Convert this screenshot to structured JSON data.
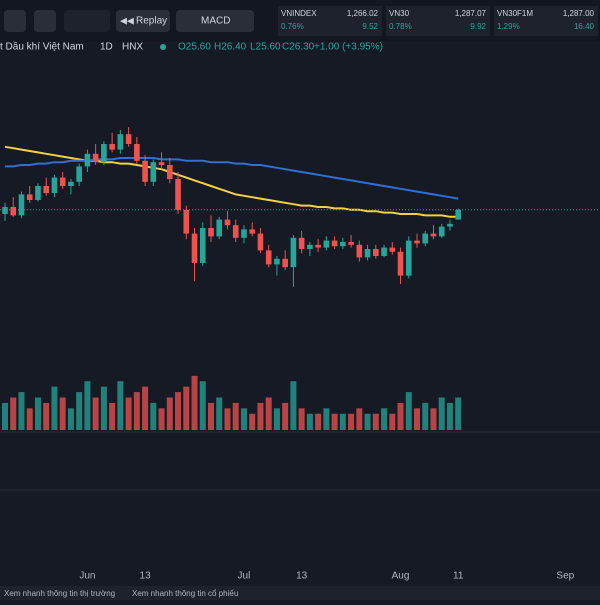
{
  "toolbar": {
    "replay": "Replay",
    "indicator": "MACD"
  },
  "tickers": [
    {
      "name": "VNINDEX",
      "price": "1,266.02",
      "pct": "0.76%",
      "change": "9.52"
    },
    {
      "name": "VN30",
      "price": "1,287.07",
      "pct": "0.78%",
      "change": "9.92"
    },
    {
      "name": "VN30F1M",
      "price": "1,287.00",
      "pct": "1.29%",
      "change": "16.40"
    }
  ],
  "legend": {
    "name": "t Dầu khí Việt Nam",
    "interval": "1D",
    "exchange": "HNX",
    "open": "O25.60",
    "high": "H26.40",
    "low": "L25.60",
    "close": "C26.30",
    "change": "+1.00 (+3.95%)"
  },
  "footer": [
    "Xem nhanh thông tin thị trường",
    "Xem nhanh thông tin cổ phiếu"
  ],
  "chart_data": {
    "type": "candlestick",
    "up_color": "#26a69a",
    "down_color": "#ef5350",
    "ylim": [
      17,
      37
    ],
    "x_labels": [
      {
        "label": "Jun",
        "index": 10
      },
      {
        "label": "13",
        "index": 17
      },
      {
        "label": "Jul",
        "index": 29
      },
      {
        "label": "13",
        "index": 36
      },
      {
        "label": "Aug",
        "index": 48
      },
      {
        "label": "11",
        "index": 55
      },
      {
        "label": "Sep",
        "index": 68
      }
    ],
    "ohlc": [
      [
        26.0,
        26.8,
        25.5,
        26.5
      ],
      [
        26.5,
        27.2,
        25.8,
        25.9
      ],
      [
        25.9,
        27.6,
        25.7,
        27.4
      ],
      [
        27.4,
        28.0,
        26.8,
        27.0
      ],
      [
        27.0,
        28.2,
        26.9,
        28.0
      ],
      [
        28.0,
        28.6,
        27.3,
        27.5
      ],
      [
        27.5,
        28.8,
        27.2,
        28.6
      ],
      [
        28.6,
        29.0,
        27.8,
        28.0
      ],
      [
        28.0,
        28.5,
        27.4,
        28.3
      ],
      [
        28.3,
        29.6,
        28.0,
        29.4
      ],
      [
        29.4,
        30.6,
        29.0,
        30.3
      ],
      [
        30.3,
        31.0,
        29.5,
        29.7
      ],
      [
        29.7,
        31.2,
        29.5,
        31.0
      ],
      [
        31.0,
        31.8,
        30.4,
        30.6
      ],
      [
        30.6,
        32.0,
        30.3,
        31.7
      ],
      [
        31.7,
        32.2,
        30.8,
        31.0
      ],
      [
        31.0,
        31.5,
        29.6,
        29.8
      ],
      [
        29.8,
        30.2,
        28.0,
        28.3
      ],
      [
        28.3,
        29.9,
        28.0,
        29.7
      ],
      [
        29.7,
        30.4,
        29.2,
        29.5
      ],
      [
        29.5,
        30.0,
        28.2,
        28.5
      ],
      [
        28.5,
        29.0,
        26.0,
        26.3
      ],
      [
        26.3,
        26.6,
        24.2,
        24.6
      ],
      [
        24.6,
        25.0,
        21.2,
        22.5
      ],
      [
        22.5,
        25.4,
        22.3,
        25.0
      ],
      [
        25.0,
        25.9,
        24.0,
        24.4
      ],
      [
        24.4,
        25.8,
        24.2,
        25.6
      ],
      [
        25.6,
        26.2,
        24.9,
        25.2
      ],
      [
        25.2,
        25.6,
        24.0,
        24.3
      ],
      [
        24.3,
        25.2,
        23.9,
        24.9
      ],
      [
        24.9,
        25.4,
        24.4,
        24.6
      ],
      [
        24.6,
        25.0,
        23.2,
        23.4
      ],
      [
        23.4,
        23.8,
        22.2,
        22.4
      ],
      [
        22.4,
        23.0,
        21.6,
        22.8
      ],
      [
        22.8,
        23.4,
        22.0,
        22.2
      ],
      [
        22.2,
        24.5,
        20.8,
        24.3
      ],
      [
        24.3,
        24.8,
        23.2,
        23.5
      ],
      [
        23.5,
        24.0,
        23.0,
        23.8
      ],
      [
        23.8,
        24.2,
        23.3,
        23.6
      ],
      [
        23.6,
        24.4,
        23.4,
        24.1
      ],
      [
        24.1,
        24.4,
        23.5,
        23.7
      ],
      [
        23.7,
        24.3,
        23.5,
        24.0
      ],
      [
        24.0,
        24.5,
        23.6,
        23.8
      ],
      [
        23.8,
        24.1,
        22.6,
        22.9
      ],
      [
        22.9,
        23.8,
        22.7,
        23.5
      ],
      [
        23.5,
        23.8,
        22.8,
        23.0
      ],
      [
        23.0,
        23.8,
        22.9,
        23.6
      ],
      [
        23.6,
        24.0,
        23.1,
        23.3
      ],
      [
        23.3,
        23.6,
        21.0,
        21.6
      ],
      [
        21.6,
        24.4,
        21.4,
        24.1
      ],
      [
        24.1,
        24.6,
        23.6,
        23.9
      ],
      [
        23.9,
        24.8,
        23.7,
        24.6
      ],
      [
        24.6,
        25.2,
        24.2,
        24.4
      ],
      [
        24.4,
        25.3,
        24.3,
        25.1
      ],
      [
        25.1,
        25.6,
        24.8,
        25.3
      ],
      [
        25.6,
        26.4,
        25.6,
        26.3
      ]
    ],
    "lines": [
      {
        "color": "#f5d142",
        "values": [
          30.8,
          30.7,
          30.6,
          30.5,
          30.4,
          30.3,
          30.2,
          30.1,
          30.0,
          29.9,
          29.8,
          29.8,
          29.7,
          29.7,
          29.6,
          29.6,
          29.5,
          29.4,
          29.3,
          29.2,
          29.0,
          28.8,
          28.6,
          28.4,
          28.2,
          28.0,
          27.8,
          27.6,
          27.4,
          27.3,
          27.2,
          27.1,
          27.0,
          26.9,
          26.8,
          26.7,
          26.6,
          26.6,
          26.5,
          26.5,
          26.4,
          26.4,
          26.3,
          26.3,
          26.2,
          26.2,
          26.1,
          26.1,
          26.0,
          26.0,
          26.0,
          25.9,
          25.9,
          25.9,
          25.8,
          25.8
        ]
      },
      {
        "color": "#2f6fd6",
        "values": [
          29.4,
          29.4,
          29.5,
          29.5,
          29.6,
          29.6,
          29.7,
          29.7,
          29.8,
          29.8,
          29.8,
          29.9,
          29.9,
          29.9,
          30.0,
          30.0,
          30.0,
          30.0,
          30.0,
          29.9,
          29.9,
          29.9,
          29.8,
          29.8,
          29.8,
          29.7,
          29.7,
          29.7,
          29.6,
          29.6,
          29.5,
          29.5,
          29.4,
          29.3,
          29.2,
          29.1,
          29.0,
          28.9,
          28.8,
          28.7,
          28.6,
          28.5,
          28.4,
          28.3,
          28.2,
          28.1,
          28.0,
          27.9,
          27.8,
          27.7,
          27.6,
          27.5,
          27.4,
          27.3,
          27.2,
          27.1
        ]
      }
    ],
    "volume_ylim": [
      0,
      1.2
    ],
    "volume": [
      0.5,
      0.6,
      0.7,
      0.4,
      0.6,
      0.5,
      0.8,
      0.6,
      0.4,
      0.7,
      0.9,
      0.6,
      0.8,
      0.5,
      0.9,
      0.6,
      0.7,
      0.8,
      0.5,
      0.4,
      0.6,
      0.7,
      0.8,
      1.0,
      0.9,
      0.5,
      0.6,
      0.4,
      0.5,
      0.4,
      0.3,
      0.5,
      0.6,
      0.4,
      0.5,
      0.9,
      0.4,
      0.3,
      0.3,
      0.4,
      0.3,
      0.3,
      0.3,
      0.4,
      0.3,
      0.3,
      0.4,
      0.3,
      0.5,
      0.7,
      0.4,
      0.5,
      0.4,
      0.6,
      0.5,
      0.6
    ]
  }
}
